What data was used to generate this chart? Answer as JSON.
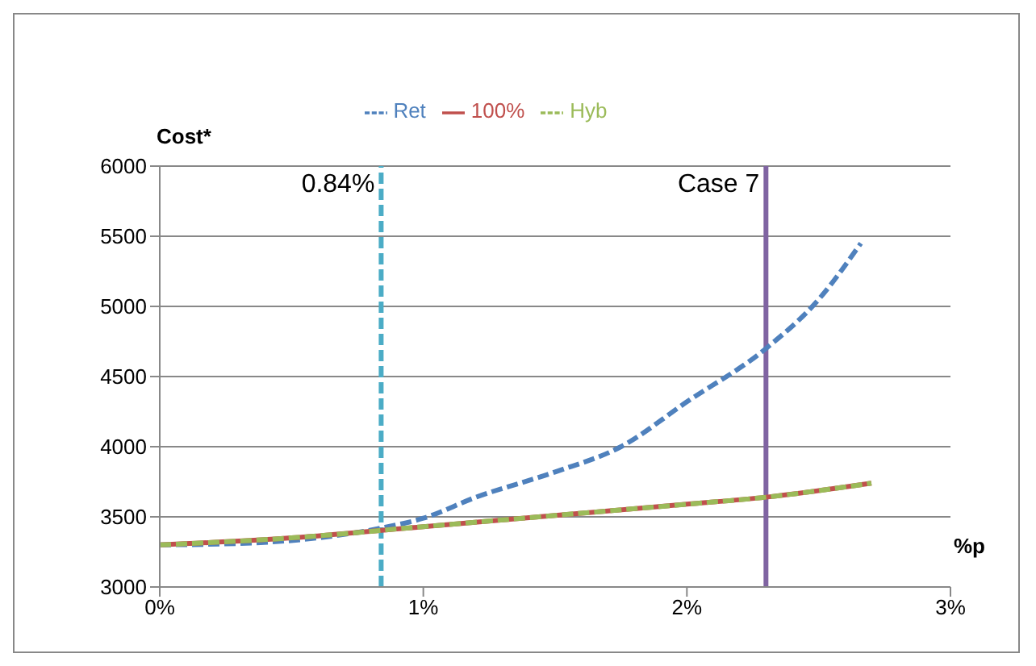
{
  "chart_data": {
    "type": "line",
    "xlabel": "%p",
    "ylabel": "Cost*",
    "xlim": [
      0,
      3
    ],
    "xticks": [
      {
        "value": 0,
        "label": "0%"
      },
      {
        "value": 1,
        "label": "1%"
      },
      {
        "value": 2,
        "label": "2%"
      },
      {
        "value": 3,
        "label": "3%"
      }
    ],
    "ylim": [
      3000,
      6000
    ],
    "yticks": [
      3000,
      3500,
      4000,
      4500,
      5000,
      5500,
      6000
    ],
    "grid": "y",
    "legend": "top",
    "marker": "none",
    "series": [
      {
        "name": "Ret",
        "color": "#4f81bd",
        "line_style": "dashed",
        "x": [
          0,
          0.3,
          0.6,
          0.84,
          1.0,
          1.2,
          1.5,
          1.75,
          2.0,
          2.3,
          2.5,
          2.66
        ],
        "values": [
          3300,
          3310,
          3350,
          3420,
          3490,
          3640,
          3820,
          4000,
          4320,
          4700,
          5050,
          5450
        ]
      },
      {
        "name": "100%",
        "color": "#c0504d",
        "line_style": "solid",
        "x": [
          0,
          0.5,
          1.0,
          1.5,
          2.0,
          2.3,
          2.7
        ],
        "values": [
          3300,
          3350,
          3430,
          3510,
          3590,
          3640,
          3740
        ]
      },
      {
        "name": "Hyb",
        "color": "#9bbb59",
        "line_style": "dashed",
        "x": [
          0,
          0.5,
          1.0,
          1.5,
          2.0,
          2.3,
          2.7
        ],
        "values": [
          3300,
          3350,
          3430,
          3510,
          3590,
          3640,
          3740
        ]
      }
    ],
    "ref_lines": [
      {
        "axis": "x",
        "value": 0.84,
        "label": "0.84%",
        "color": "#4bacc6",
        "line_style": "dashed"
      },
      {
        "axis": "x",
        "value": 2.3,
        "label": "Case 7",
        "color": "#8064a2",
        "line_style": "solid"
      }
    ]
  }
}
